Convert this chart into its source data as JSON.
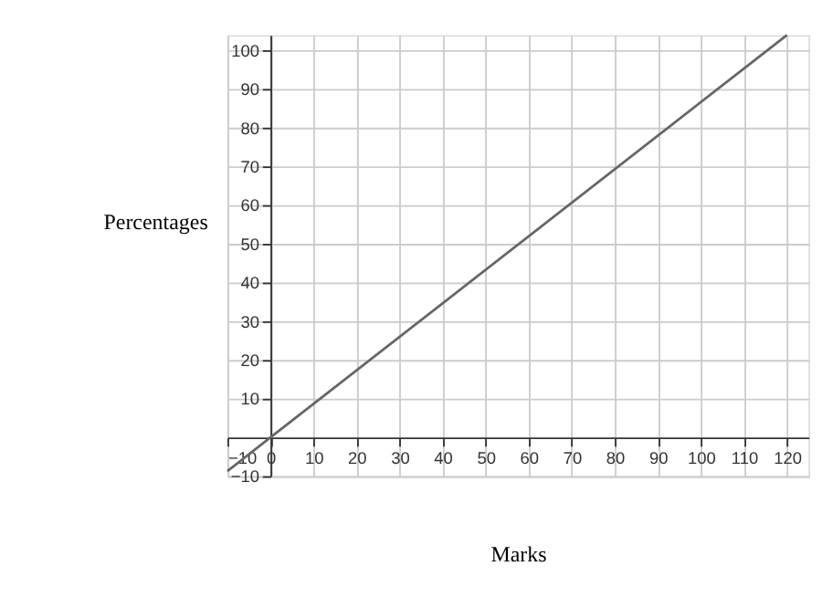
{
  "chart_data": {
    "type": "line",
    "xlabel": "Marks",
    "ylabel": "Percentages",
    "x": [
      -10,
      0,
      120
    ],
    "series": [
      {
        "color": "#666666",
        "values": [
          -8.7,
          0,
          104
        ]
      }
    ],
    "xlim": [
      -10,
      125
    ],
    "ylim": [
      -10,
      104
    ],
    "xticks": [
      -10,
      0,
      10,
      20,
      30,
      40,
      50,
      60,
      70,
      80,
      90,
      100,
      110,
      120
    ],
    "yticks": [
      -10,
      10,
      20,
      30,
      40,
      50,
      60,
      70,
      80,
      90,
      100
    ],
    "grid": true,
    "marker": "none",
    "line_style": "solid"
  }
}
